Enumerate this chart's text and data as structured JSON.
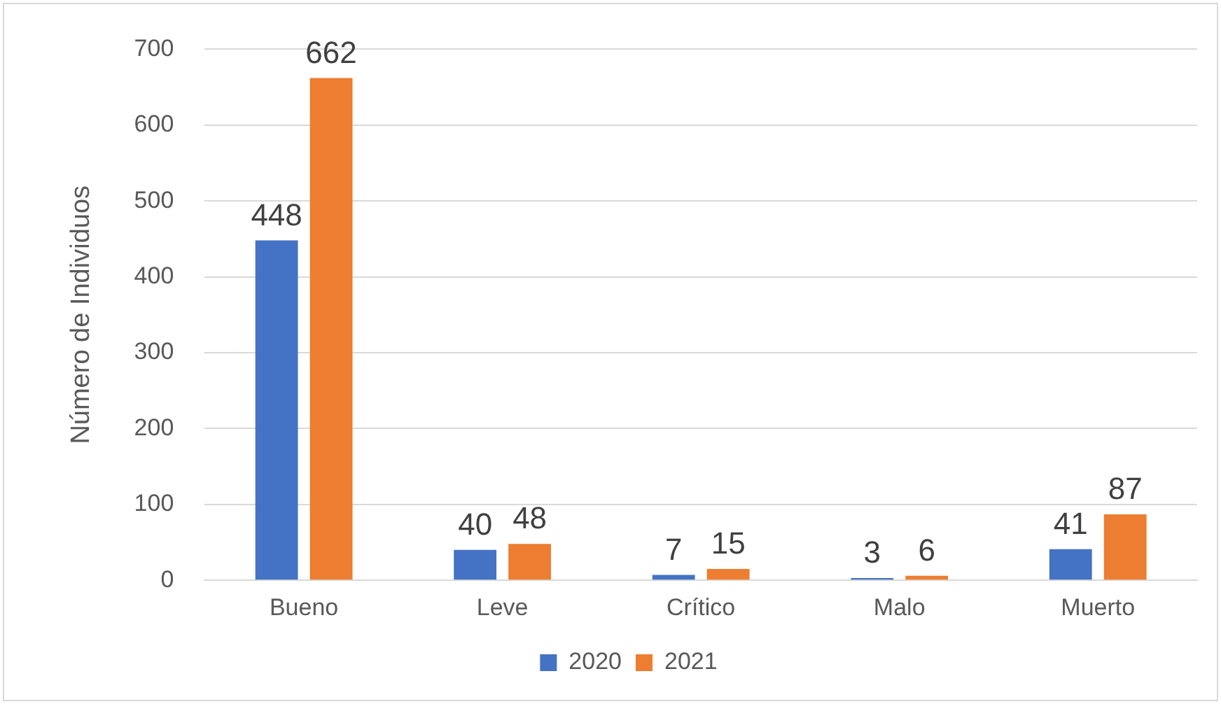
{
  "chart_data": {
    "type": "bar",
    "ylabel": "Número de Individuos",
    "categories": [
      "Bueno",
      "Leve",
      "Crítico",
      "Malo",
      "Muerto"
    ],
    "series": [
      {
        "name": "2020",
        "color": "#4472c4",
        "values": [
          448,
          40,
          7,
          3,
          41
        ]
      },
      {
        "name": "2021",
        "color": "#ed7d31",
        "values": [
          662,
          48,
          15,
          6,
          87
        ]
      }
    ],
    "ylim": [
      0,
      700
    ],
    "yticks": [
      0,
      100,
      200,
      300,
      400,
      500,
      600,
      700
    ],
    "grid": "y",
    "legend": "bottom",
    "data_labels": true
  }
}
